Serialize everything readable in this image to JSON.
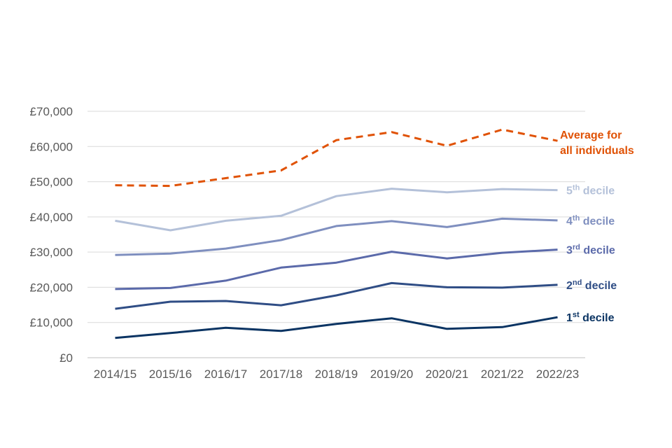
{
  "chart_data": {
    "type": "line",
    "categories": [
      "2014/15",
      "2015/16",
      "2016/17",
      "2017/18",
      "2018/19",
      "2019/20",
      "2020/21",
      "2021/22",
      "2022/23"
    ],
    "ylim": [
      0,
      70000
    ],
    "yticks": [
      0,
      10000,
      20000,
      30000,
      40000,
      50000,
      60000,
      70000
    ],
    "ytick_labels": [
      "£0",
      "£10,000",
      "£20,000",
      "£30,000",
      "£40,000",
      "£50,000",
      "£60,000",
      "£70,000"
    ],
    "grid": true,
    "series": [
      {
        "key": "average",
        "label_lines": [
          "Average for",
          "all individuals"
        ],
        "color": "#e05206",
        "dashed": true,
        "values": [
          49000,
          48800,
          51000,
          53200,
          61800,
          64100,
          60200,
          64800,
          61600
        ]
      },
      {
        "key": "decile-5",
        "num": "5",
        "sup": "th",
        "word": " decile",
        "color": "#b4c1d9",
        "dashed": false,
        "values": [
          38900,
          36200,
          38900,
          40300,
          45900,
          48000,
          47000,
          47900,
          47600
        ]
      },
      {
        "key": "decile-4",
        "num": "4",
        "sup": "th",
        "word": " decile",
        "color": "#7f8fbf",
        "dashed": false,
        "values": [
          29200,
          29600,
          31000,
          33400,
          37400,
          38800,
          37100,
          39500,
          39000
        ]
      },
      {
        "key": "decile-3",
        "num": "3",
        "sup": "rd",
        "word": " decile",
        "color": "#5b6aaa",
        "dashed": false,
        "values": [
          19500,
          19800,
          21900,
          25600,
          27000,
          30100,
          28200,
          29800,
          30700
        ]
      },
      {
        "key": "decile-2",
        "num": "2",
        "sup": "nd",
        "word": " decile",
        "color": "#2f4d85",
        "dashed": false,
        "values": [
          13900,
          15900,
          16100,
          14900,
          17700,
          21200,
          20000,
          19900,
          20700
        ]
      },
      {
        "key": "decile-1",
        "num": "1",
        "sup": "st",
        "word": " decile",
        "color": "#0b3463",
        "dashed": false,
        "values": [
          5600,
          7000,
          8500,
          7600,
          9600,
          11200,
          8200,
          8700,
          11500
        ]
      }
    ]
  }
}
